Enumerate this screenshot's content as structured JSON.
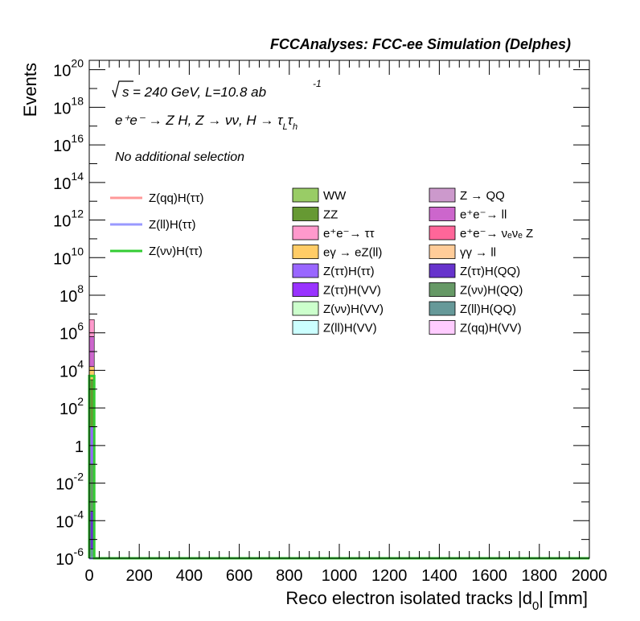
{
  "chart_data": {
    "type": "bar",
    "title": "FCCAnalyses: FCC-ee Simulation (Delphes)",
    "xlabel": "Reco electron isolated tracks |d_0| [mm]",
    "ylabel": "Events",
    "xlim": [
      0,
      2000
    ],
    "ylim_exp": [
      -6,
      20.5
    ],
    "yscale": "log",
    "x_ticks": [
      "0",
      "200",
      "400",
      "600",
      "800",
      "1000",
      "1200",
      "1400",
      "1600",
      "1800",
      "2000"
    ],
    "x_tick_values": [
      0,
      200,
      400,
      600,
      800,
      1000,
      1200,
      1400,
      1600,
      1800,
      2000
    ],
    "y_ticks": [
      {
        "base": "10",
        "exp": "20",
        "value": 20
      },
      {
        "base": "10",
        "exp": "18",
        "value": 18
      },
      {
        "base": "10",
        "exp": "16",
        "value": 16
      },
      {
        "base": "10",
        "exp": "14",
        "value": 14
      },
      {
        "base": "10",
        "exp": "12",
        "value": 12
      },
      {
        "base": "10",
        "exp": "10",
        "value": 10
      },
      {
        "base": "10",
        "exp": "8",
        "value": 8
      },
      {
        "base": "10",
        "exp": "6",
        "value": 6
      },
      {
        "base": "10",
        "exp": "4",
        "value": 4
      },
      {
        "base": "10",
        "exp": "2",
        "value": 2
      },
      {
        "base": "1",
        "exp": "",
        "value": 0
      },
      {
        "base": "10",
        "exp": "-2",
        "value": -2
      },
      {
        "base": "10",
        "exp": "-4",
        "value": -4
      },
      {
        "base": "10",
        "exp": "-6",
        "value": -6
      }
    ],
    "annotations": {
      "energy_sqrt": "s",
      "energy_rest": "= 240 GeV, L=10.8 ab",
      "energy_sup": "-1",
      "process": "e⁺e⁻ → Z H, Z → νν, H → τ_L τ_h",
      "selection": "No additional selection"
    },
    "stack_bins": [
      {
        "x0": 0,
        "x1": 20,
        "segments": [
          {
            "name": "Z(ll)H(QQ)",
            "log_top": -5.5
          },
          {
            "name": "Z(ττ)H(QQ)",
            "log_top": -3.5
          },
          {
            "name": "Z(νν)H(QQ)",
            "log_top": -1.0
          },
          {
            "name": "Z(ττ)H(ττ)",
            "log_top": 1.0
          },
          {
            "name": "ZZ",
            "log_top": 3.5
          },
          {
            "name": "eγ → eZ(ll)",
            "log_top": 4.2
          },
          {
            "name": "e⁺e⁻→ ll",
            "log_top": 5.8
          },
          {
            "name": "e⁺e⁻→ ττ",
            "log_top": 6.7
          }
        ]
      }
    ],
    "signal_lines": [
      {
        "name": "Z(qq)H(ττ)",
        "color": "#ff9999",
        "points": [
          [
            0,
            -6
          ],
          [
            20,
            -6
          ],
          [
            2000,
            -6
          ]
        ]
      },
      {
        "name": "Z(ll)H(ττ)",
        "color": "#9999ff",
        "points": [
          [
            0,
            -6
          ],
          [
            20,
            -6
          ],
          [
            2000,
            -6
          ]
        ]
      },
      {
        "name": "Z(νν)H(ττ)",
        "color": "#33cc33",
        "points": [
          [
            0,
            -6
          ],
          [
            0,
            3.7
          ],
          [
            20,
            3.7
          ],
          [
            20,
            -6
          ],
          [
            2000,
            -6
          ]
        ]
      }
    ],
    "legend_lines": [
      {
        "name": "Z(qq)H(ττ)",
        "color": "#ff9999"
      },
      {
        "name": "Z(ll)H(ττ)",
        "color": "#9999ff"
      },
      {
        "name": "Z(νν)H(ττ)",
        "color": "#33cc33"
      }
    ],
    "legend_boxes_col1": [
      {
        "name": "WW",
        "color": "#99cc66"
      },
      {
        "name": "ZZ",
        "color": "#669933"
      },
      {
        "name": "e⁺e⁻→ ττ",
        "color": "#ff99cc"
      },
      {
        "name": "eγ → eZ(ll)",
        "color": "#ffcc66"
      },
      {
        "name": "Z(ττ)H(ττ)",
        "color": "#9966ff"
      },
      {
        "name": "Z(ττ)H(VV)",
        "color": "#9933ff"
      },
      {
        "name": "Z(νν)H(VV)",
        "color": "#ccffcc"
      },
      {
        "name": "Z(ll)H(VV)",
        "color": "#ccffff"
      }
    ],
    "legend_boxes_col2": [
      {
        "name": "Z → QQ",
        "color": "#cc99cc"
      },
      {
        "name": "e⁺e⁻→ ll",
        "color": "#cc66cc"
      },
      {
        "name": "e⁺e⁻→ νₑνₑ Z",
        "color": "#ff6699"
      },
      {
        "name": "γγ → ll",
        "color": "#ffcc99"
      },
      {
        "name": "Z(ττ)H(QQ)",
        "color": "#6633cc"
      },
      {
        "name": "Z(νν)H(QQ)",
        "color": "#669966"
      },
      {
        "name": "Z(ll)H(QQ)",
        "color": "#669999"
      },
      {
        "name": "Z(qq)H(VV)",
        "color": "#ffccff"
      }
    ],
    "grid": false,
    "legend_position": "upper-right"
  }
}
